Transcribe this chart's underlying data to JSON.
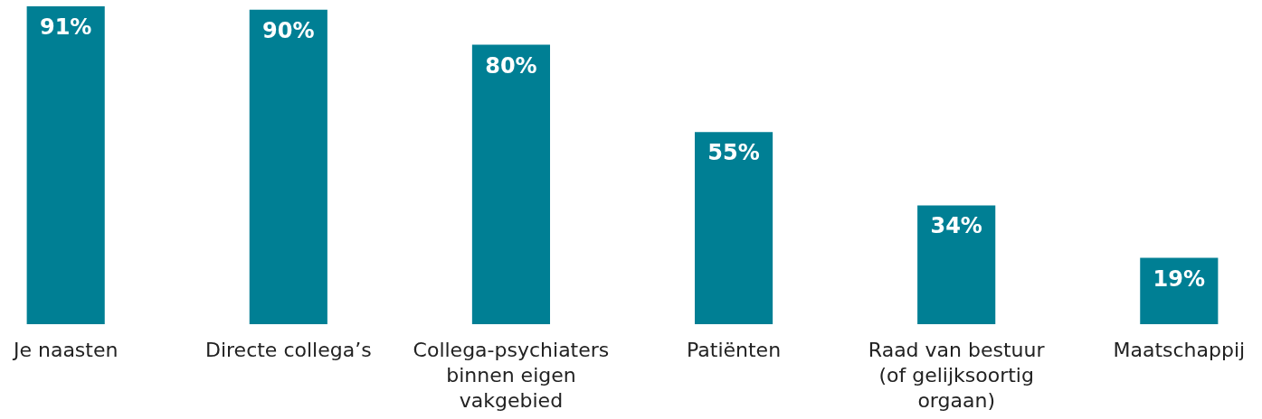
{
  "chart_data": {
    "type": "bar",
    "categories": [
      "Je naasten",
      "Directe collega’s",
      "Collega-psychiaters binnen eigen vakgebied",
      "Patiënten",
      "Raad van bestuur (of gelijksoortig orgaan)",
      "Maatschappij"
    ],
    "values": [
      91,
      90,
      80,
      55,
      34,
      19
    ],
    "value_labels": [
      "91%",
      "90%",
      "80%",
      "55%",
      "34%",
      "19%"
    ],
    "color": "#007f94"
  }
}
